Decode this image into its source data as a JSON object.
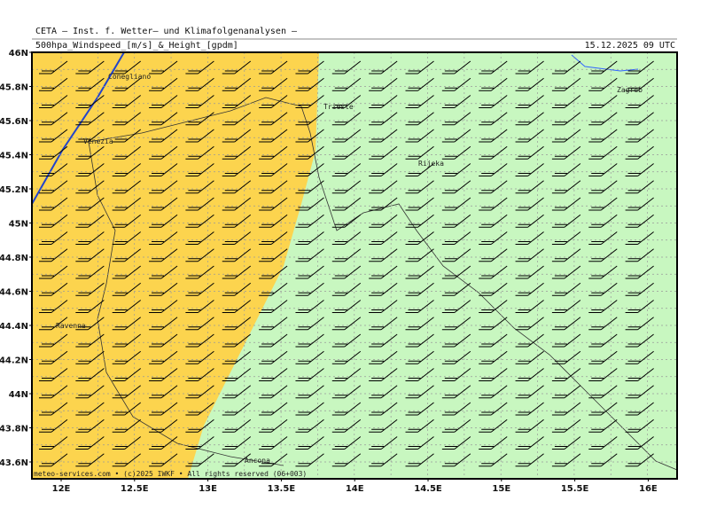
{
  "header": {
    "title": "CETA – Inst. f. Wetter– und Klimafolgenanalysen –",
    "subtitle": "500hpa_Windspeed_[m/s]_&_Height_[gpdm]",
    "date": "15.12.2025 09 UTC"
  },
  "lat_labels": [
    "46N",
    "45.8N",
    "45.6N",
    "45.4N",
    "45.2N",
    "45N",
    "44.8N",
    "44.6N",
    "44.4N",
    "44.2N",
    "44N",
    "43.8N",
    "43.6N"
  ],
  "lon_labels": [
    "12E",
    "12.5E",
    "13E",
    "13.5E",
    "14E",
    "14.5E",
    "15E",
    "15.5E",
    "16E"
  ],
  "cities": [
    {
      "name": "Conegliano"
    },
    {
      "name": "Venezia"
    },
    {
      "name": "Trieste"
    },
    {
      "name": "Rijeka"
    },
    {
      "name": "Zagreb"
    },
    {
      "name": "Ravenna"
    },
    {
      "name": "Ancona"
    }
  ],
  "footer": "meteo-services.com • (c)2025 IWKF • All rights reserved (06+003)"
}
